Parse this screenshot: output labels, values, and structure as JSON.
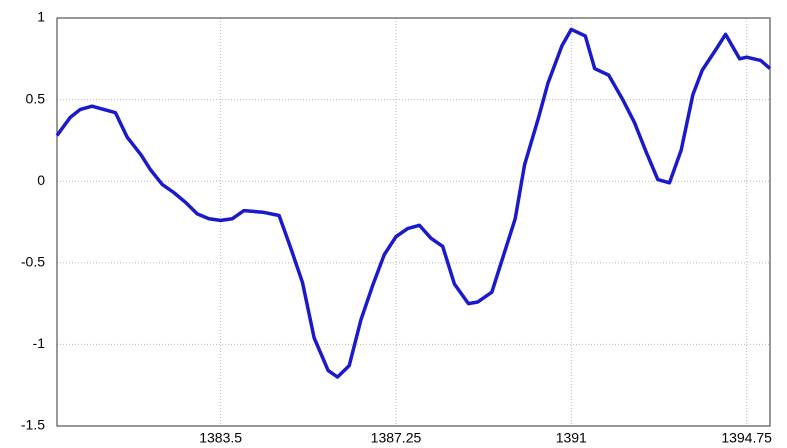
{
  "chart_data": {
    "type": "line",
    "x": [
      1380,
      1380.28,
      1380.5,
      1380.75,
      1381.25,
      1381.5,
      1381.8,
      1382.0,
      1382.25,
      1382.5,
      1382.75,
      1383.0,
      1383.25,
      1383.5,
      1383.75,
      1384.0,
      1384.4,
      1384.75,
      1385.0,
      1385.25,
      1385.5,
      1385.8,
      1386.0,
      1386.25,
      1386.5,
      1386.75,
      1387.0,
      1387.25,
      1387.5,
      1387.75,
      1388.0,
      1388.25,
      1388.5,
      1388.8,
      1389.0,
      1389.3,
      1389.5,
      1389.8,
      1390.0,
      1390.3,
      1390.5,
      1390.8,
      1391.0,
      1391.3,
      1391.5,
      1391.8,
      1392.1,
      1392.35,
      1392.6,
      1392.85,
      1393.1,
      1393.35,
      1393.6,
      1393.8,
      1394.1,
      1394.3,
      1394.6,
      1394.75,
      1395.05,
      1395.25
    ],
    "series": [
      {
        "color": "#1a1acc",
        "values": [
          0.28,
          0.39,
          0.44,
          0.46,
          0.42,
          0.27,
          0.16,
          0.07,
          -0.02,
          -0.07,
          -0.13,
          -0.2,
          -0.23,
          -0.24,
          -0.23,
          -0.18,
          -0.19,
          -0.21,
          -0.41,
          -0.62,
          -0.96,
          -1.16,
          -1.2,
          -1.13,
          -0.85,
          -0.64,
          -0.45,
          -0.34,
          -0.29,
          -0.27,
          -0.35,
          -0.4,
          -0.63,
          -0.75,
          -0.74,
          -0.68,
          -0.5,
          -0.23,
          0.1,
          0.39,
          0.6,
          0.83,
          0.93,
          0.89,
          0.69,
          0.65,
          0.5,
          0.36,
          0.18,
          0.01,
          -0.01,
          0.19,
          0.53,
          0.68,
          0.81,
          0.9,
          0.75,
          0.76,
          0.74,
          0.69
        ]
      }
    ],
    "xlim": [
      1380,
      1395.25
    ],
    "xticks": [
      1383.5,
      1387.25,
      1391,
      1394.75
    ],
    "ylim": [
      -1.5,
      1
    ],
    "yticks": [
      -1.5,
      -1,
      -0.5,
      0,
      0.5,
      1
    ],
    "grid": true
  }
}
